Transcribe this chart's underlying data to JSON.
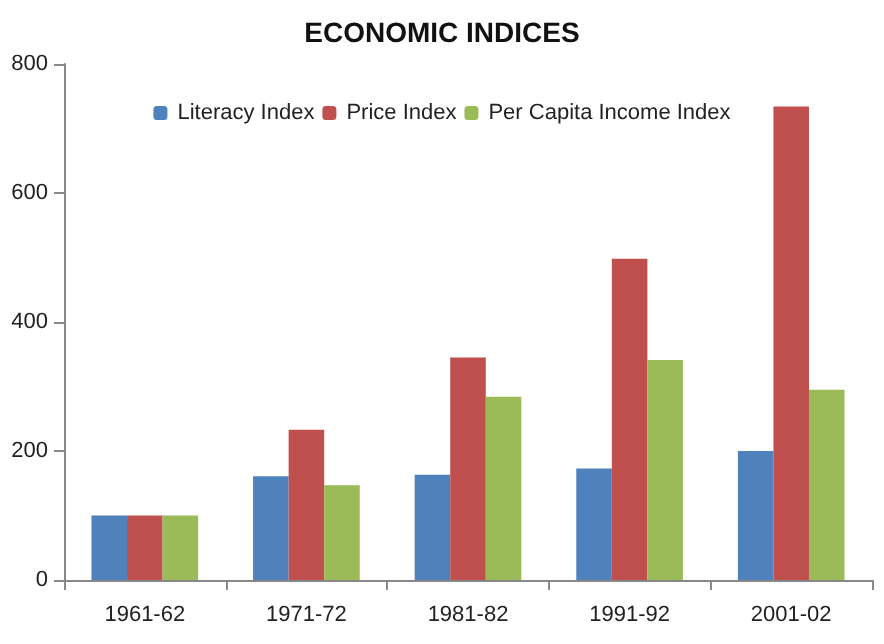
{
  "chart_data": {
    "type": "bar",
    "title": "ECONOMIC INDICES",
    "categories": [
      "1961-62",
      "1971-72",
      "1981-82",
      "1991-92",
      "2001-02"
    ],
    "series": [
      {
        "name": "Literacy Index",
        "color": "#4f81bd",
        "values": [
          100,
          161,
          163,
          173,
          200
        ]
      },
      {
        "name": "Price Index",
        "color": "#c0504d",
        "values": [
          100,
          233,
          345,
          498,
          734
        ]
      },
      {
        "name": "Per Capita Income Index",
        "color": "#9bbb59",
        "values": [
          100,
          147,
          284,
          341,
          295
        ]
      }
    ],
    "ylim": [
      0,
      800
    ],
    "yticks": [
      0,
      200,
      400,
      600,
      800
    ],
    "grid": false,
    "legend": "top"
  }
}
